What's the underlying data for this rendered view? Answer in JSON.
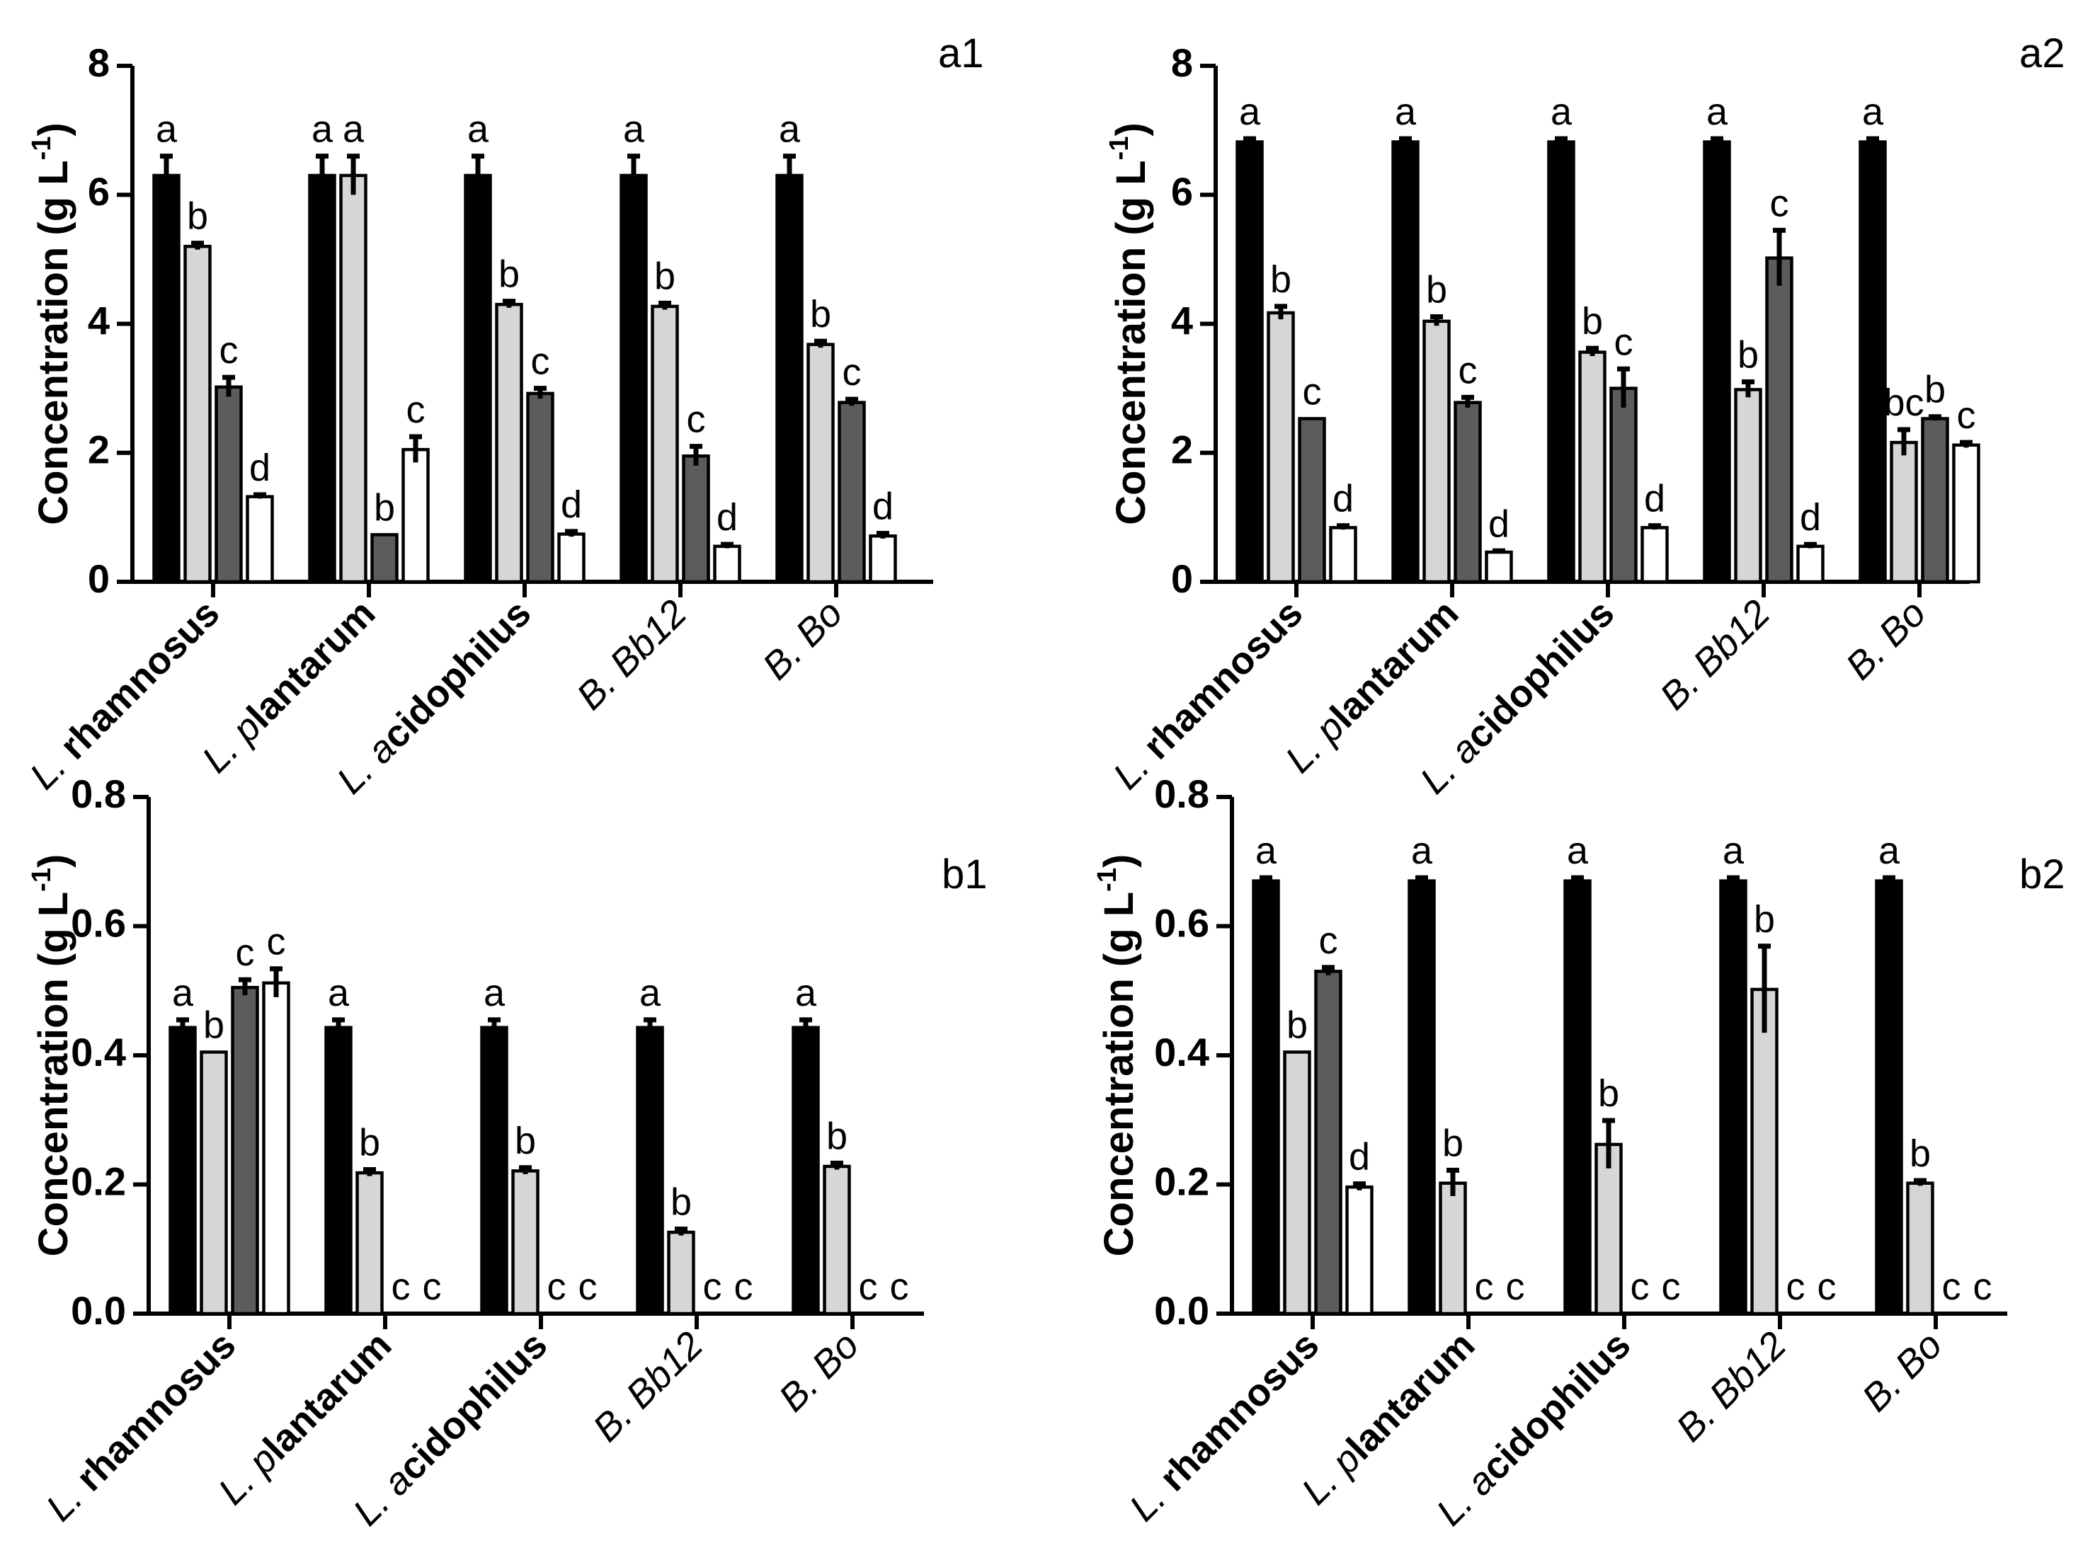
{
  "chart_data": [
    {
      "type": "bar",
      "panel_label": "a1",
      "ylabel": "Concentration (g L",
      "ylabel_superscript": "-1",
      "ylabel_suffix": ")",
      "ylim": [
        0,
        8
      ],
      "yticks": [
        0,
        2,
        4,
        6,
        8
      ],
      "ytick_labels": [
        "0",
        "2",
        "4",
        "6",
        "8"
      ],
      "categories": [
        {
          "prefix": "L. ",
          "prefix_italic": true,
          "main": "rhamnosus",
          "main_italic": false,
          "main_bold": true
        },
        {
          "prefix": "L. p",
          "prefix_italic": true,
          "main": "lantarum",
          "main_italic": false,
          "main_bold": true
        },
        {
          "prefix": "L. a",
          "prefix_italic": true,
          "main": "cidophilus",
          "main_italic": false,
          "main_bold": true
        },
        {
          "prefix": "B. ",
          "prefix_italic": true,
          "main": "Bb12",
          "main_italic": true,
          "main_bold": false
        },
        {
          "prefix": "B. ",
          "prefix_italic": true,
          "main": "Bo",
          "main_italic": true,
          "main_bold": false
        }
      ],
      "series_fills": [
        "#000000",
        "#d6d6d6",
        "#5c5c5c",
        "#ffffff"
      ],
      "series": [
        {
          "values": [
            6.3,
            6.3,
            6.3,
            6.3,
            6.3
          ],
          "errors": [
            0.3,
            0.3,
            0.3,
            0.3,
            0.3
          ],
          "labels": [
            "a",
            "a",
            "a",
            "a",
            "a"
          ]
        },
        {
          "values": [
            5.2,
            6.3,
            4.3,
            4.27,
            3.68
          ],
          "errors": [
            0.05,
            0.3,
            0.05,
            0.05,
            0.05
          ],
          "labels": [
            "b",
            "a",
            "b",
            "b",
            "b"
          ]
        },
        {
          "values": [
            3.02,
            0.73,
            2.92,
            1.95,
            2.78
          ],
          "errors": [
            0.15,
            0.0,
            0.08,
            0.15,
            0.05
          ],
          "labels": [
            "c",
            "b",
            "c",
            "c",
            "c"
          ]
        },
        {
          "values": [
            1.32,
            2.05,
            0.74,
            0.55,
            0.71
          ],
          "errors": [
            0.03,
            0.2,
            0.04,
            0.03,
            0.04
          ],
          "labels": [
            "d",
            "c",
            "d",
            "d",
            "d"
          ]
        }
      ]
    },
    {
      "type": "bar",
      "panel_label": "a2",
      "ylabel": "Concentration (g L",
      "ylabel_superscript": "-1",
      "ylabel_suffix": ")",
      "ylim": [
        0,
        8
      ],
      "yticks": [
        0,
        2,
        4,
        6,
        8
      ],
      "ytick_labels": [
        "0",
        "2",
        "4",
        "6",
        "8"
      ],
      "categories": [
        {
          "prefix": "L. ",
          "prefix_italic": true,
          "main": "rhamnosus",
          "main_italic": false,
          "main_bold": true
        },
        {
          "prefix": "L. p",
          "prefix_italic": true,
          "main": "lantarum",
          "main_italic": false,
          "main_bold": true
        },
        {
          "prefix": "L. a",
          "prefix_italic": true,
          "main": "cidophilus",
          "main_italic": false,
          "main_bold": true
        },
        {
          "prefix": "B. ",
          "prefix_italic": true,
          "main": "Bb12",
          "main_italic": true,
          "main_bold": false
        },
        {
          "prefix": "B. ",
          "prefix_italic": true,
          "main": "Bo",
          "main_italic": true,
          "main_bold": false
        }
      ],
      "series_fills": [
        "#000000",
        "#d6d6d6",
        "#5c5c5c",
        "#ffffff"
      ],
      "series": [
        {
          "values": [
            6.82,
            6.82,
            6.82,
            6.82,
            6.82
          ],
          "errors": [
            0.05,
            0.05,
            0.05,
            0.05,
            0.05
          ],
          "labels": [
            "a",
            "a",
            "a",
            "a",
            "a"
          ]
        },
        {
          "values": [
            4.17,
            4.04,
            3.56,
            2.98,
            2.16
          ],
          "errors": [
            0.1,
            0.07,
            0.06,
            0.12,
            0.2
          ],
          "labels": [
            "b",
            "b",
            "b",
            "b",
            "bc"
          ]
        },
        {
          "values": [
            2.53,
            2.78,
            3.0,
            5.02,
            2.53
          ],
          "errors": [
            0.0,
            0.08,
            0.3,
            0.43,
            0.03
          ],
          "labels": [
            "c",
            "c",
            "c",
            "c",
            "b"
          ]
        },
        {
          "values": [
            0.84,
            0.46,
            0.84,
            0.55,
            2.12
          ],
          "errors": [
            0.03,
            0.02,
            0.03,
            0.03,
            0.04
          ],
          "labels": [
            "d",
            "d",
            "d",
            "d",
            "c"
          ]
        }
      ]
    },
    {
      "type": "bar",
      "panel_label": "b1",
      "ylabel": "Concentration (g L",
      "ylabel_superscript": "-1",
      "ylabel_suffix": ")",
      "ylim": [
        0,
        0.8
      ],
      "yticks": [
        0,
        0.2,
        0.4,
        0.6,
        0.8
      ],
      "ytick_labels": [
        "0.0",
        "0.2",
        "0.4",
        "0.6",
        "0.8"
      ],
      "categories": [
        {
          "prefix": "L. ",
          "prefix_italic": true,
          "main": "rhamnosus",
          "main_italic": false,
          "main_bold": true
        },
        {
          "prefix": "L. p",
          "prefix_italic": true,
          "main": "lantarum",
          "main_italic": false,
          "main_bold": true
        },
        {
          "prefix": "L. a",
          "prefix_italic": true,
          "main": "cidophilus",
          "main_italic": false,
          "main_bold": true
        },
        {
          "prefix": "B. ",
          "prefix_italic": true,
          "main": "Bb12",
          "main_italic": true,
          "main_bold": false
        },
        {
          "prefix": "B. ",
          "prefix_italic": true,
          "main": "Bo",
          "main_italic": true,
          "main_bold": false
        }
      ],
      "series_fills": [
        "#000000",
        "#d6d6d6",
        "#5c5c5c",
        "#ffffff"
      ],
      "series": [
        {
          "values": [
            0.443,
            0.443,
            0.443,
            0.443,
            0.443
          ],
          "errors": [
            0.012,
            0.012,
            0.012,
            0.012,
            0.012
          ],
          "labels": [
            "a",
            "a",
            "a",
            "a",
            "a"
          ]
        },
        {
          "values": [
            0.405,
            0.218,
            0.221,
            0.126,
            0.228
          ],
          "errors": [
            0.0,
            0.005,
            0.005,
            0.005,
            0.005
          ],
          "labels": [
            "b",
            "b",
            "b",
            "b",
            "b"
          ]
        },
        {
          "values": [
            0.505,
            0,
            0,
            0,
            0
          ],
          "errors": [
            0.012,
            0,
            0,
            0,
            0
          ],
          "labels": [
            "c",
            "c",
            "c",
            "c",
            "c"
          ]
        },
        {
          "values": [
            0.512,
            0,
            0,
            0,
            0
          ],
          "errors": [
            0.022,
            0,
            0,
            0,
            0
          ],
          "labels": [
            "c",
            "c",
            "c",
            "c",
            "c"
          ]
        }
      ]
    },
    {
      "type": "bar",
      "panel_label": "b2",
      "ylabel": "Concentration (g L",
      "ylabel_superscript": "-1",
      "ylabel_suffix": ")",
      "ylim": [
        0,
        0.8
      ],
      "yticks": [
        0,
        0.2,
        0.4,
        0.6,
        0.8
      ],
      "ytick_labels": [
        "0.0",
        "0.2",
        "0.4",
        "0.6",
        "0.8"
      ],
      "categories": [
        {
          "prefix": "L. ",
          "prefix_italic": true,
          "main": "rhamnosus",
          "main_italic": false,
          "main_bold": true
        },
        {
          "prefix": "L. p",
          "prefix_italic": true,
          "main": "lantarum",
          "main_italic": false,
          "main_bold": true
        },
        {
          "prefix": "L. a",
          "prefix_italic": true,
          "main": "cidophilus",
          "main_italic": false,
          "main_bold": true
        },
        {
          "prefix": "B. ",
          "prefix_italic": true,
          "main": "Bb12",
          "main_italic": true,
          "main_bold": false
        },
        {
          "prefix": "B. ",
          "prefix_italic": true,
          "main": "Bo",
          "main_italic": true,
          "main_bold": false
        }
      ],
      "series_fills": [
        "#000000",
        "#d6d6d6",
        "#5c5c5c",
        "#ffffff"
      ],
      "series": [
        {
          "values": [
            0.67,
            0.67,
            0.67,
            0.67,
            0.67
          ],
          "errors": [
            0.005,
            0.005,
            0.005,
            0.005,
            0.005
          ],
          "labels": [
            "a",
            "a",
            "a",
            "a",
            "a"
          ]
        },
        {
          "values": [
            0.405,
            0.202,
            0.262,
            0.502,
            0.202
          ],
          "errors": [
            0.0,
            0.02,
            0.037,
            0.067,
            0.004
          ],
          "labels": [
            "b",
            "b",
            "b",
            "b",
            "b"
          ]
        },
        {
          "values": [
            0.53,
            0,
            0,
            0,
            0
          ],
          "errors": [
            0.006,
            0,
            0,
            0,
            0
          ],
          "labels": [
            "c",
            "c",
            "c",
            "c",
            "c"
          ]
        },
        {
          "values": [
            0.196,
            0,
            0,
            0,
            0
          ],
          "errors": [
            0.005,
            0,
            0,
            0,
            0
          ],
          "labels": [
            "d",
            "c",
            "c",
            "c",
            "c"
          ]
        }
      ]
    }
  ]
}
